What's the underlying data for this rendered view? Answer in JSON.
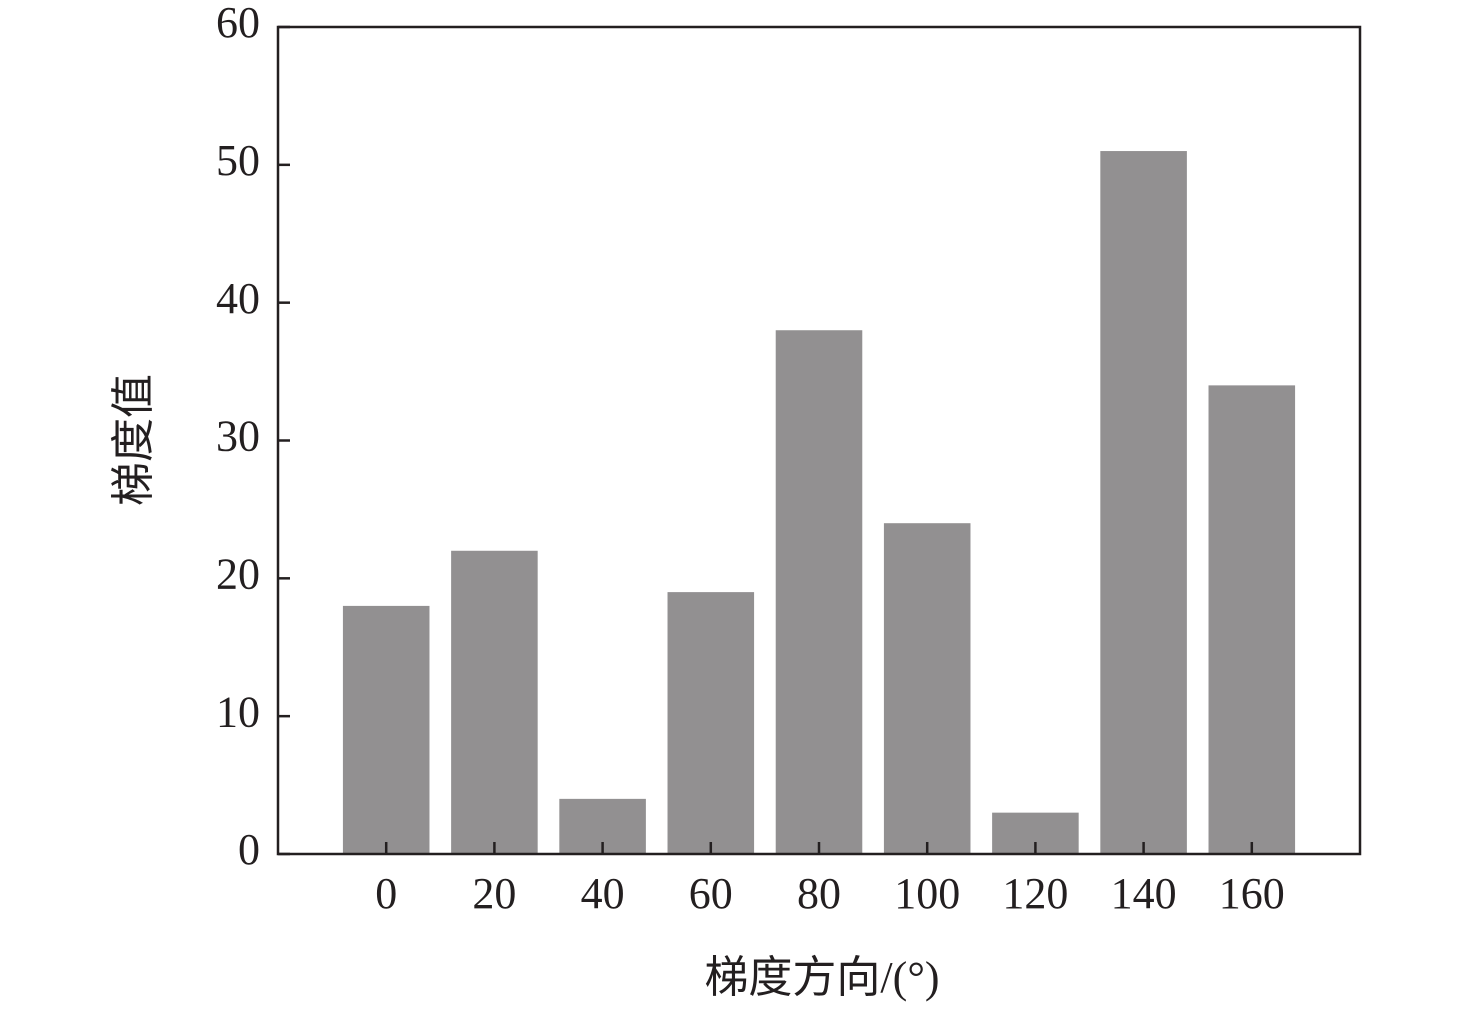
{
  "chart_data": {
    "type": "bar",
    "xlabel": "梯度方向/(°)",
    "ylabel": "梯度值",
    "x": [
      0,
      20,
      40,
      60,
      80,
      100,
      120,
      140,
      160
    ],
    "values": [
      18,
      22,
      4,
      19,
      38,
      24,
      3,
      51,
      34
    ],
    "color": "#929091",
    "xlim": [
      -20,
      180
    ],
    "xticks": [
      0,
      20,
      40,
      60,
      80,
      100,
      120,
      140,
      160
    ],
    "ylim": [
      0,
      60
    ],
    "yticks": [
      0,
      10,
      20,
      30,
      40,
      50,
      60
    ],
    "grid": false
  }
}
